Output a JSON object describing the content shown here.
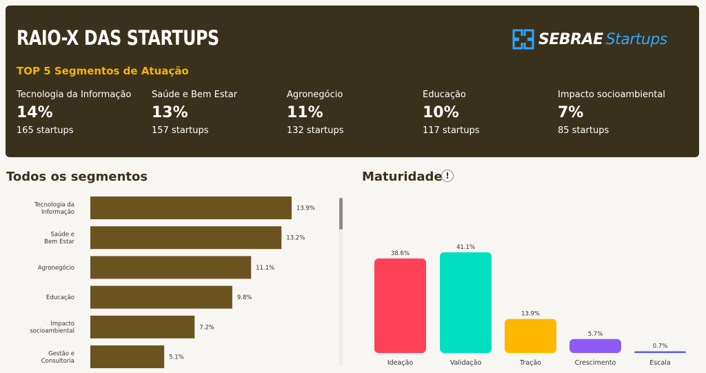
{
  "header": {
    "title": "RAIO-X DAS STARTUPS",
    "subtitle": "TOP 5 Segmentos de Atuação",
    "logo_brand": "SEBRAE",
    "logo_sub": "Startups",
    "logo_icon": "sebrae-logo-icon",
    "stats": [
      {
        "label": "Tecnologia da Informação",
        "value": "14%",
        "count": "165 startups"
      },
      {
        "label": "Saúde e Bem Estar",
        "value": "13%",
        "count": "157 startups"
      },
      {
        "label": "Agronegócio",
        "value": "11%",
        "count": "132 startups"
      },
      {
        "label": "Educação",
        "value": "10%",
        "count": "117 startups"
      },
      {
        "label": "Impacto socioambiental",
        "value": "7%",
        "count": "85 startups"
      }
    ]
  },
  "segments_title": "Todos os segmentos",
  "maturity_title": "Maturidade",
  "maturity_info": "!",
  "colors": {
    "header_bg": "#3a311c",
    "accent": "#f5b300",
    "segment_bar": "#6b5320",
    "maturity": [
      "#ff4157",
      "#00e0c0",
      "#ffb800",
      "#8d5cf6",
      "#5b5bff"
    ]
  },
  "chart_data": [
    {
      "type": "bar",
      "orientation": "horizontal",
      "categories": [
        [
          "Tecnologia da",
          "Informação"
        ],
        [
          "Saúde e",
          "Bem Estar"
        ],
        [
          "Agronegócio"
        ],
        [
          "Educação"
        ],
        [
          "Impacto",
          "socioambiental"
        ],
        [
          "Gestão e",
          "Consultoria"
        ]
      ],
      "values": [
        13.9,
        13.2,
        11.1,
        9.8,
        7.2,
        5.1
      ],
      "labels": [
        "13.9%",
        "13.2%",
        "11.1%",
        "9.8%",
        "7.2%",
        "5.1%"
      ],
      "xlim": [
        0,
        15
      ],
      "grid": false
    },
    {
      "type": "bar",
      "orientation": "vertical",
      "categories": [
        "Ideação",
        "Validação",
        "Tração",
        "Crescimento",
        "Escala"
      ],
      "values": [
        38.6,
        41.1,
        13.9,
        5.7,
        0.7
      ],
      "labels": [
        "38.6%",
        "41.1%",
        "13.9%",
        "5.7%",
        "0.7%"
      ],
      "ylim": [
        0,
        45
      ],
      "grid": false
    }
  ]
}
